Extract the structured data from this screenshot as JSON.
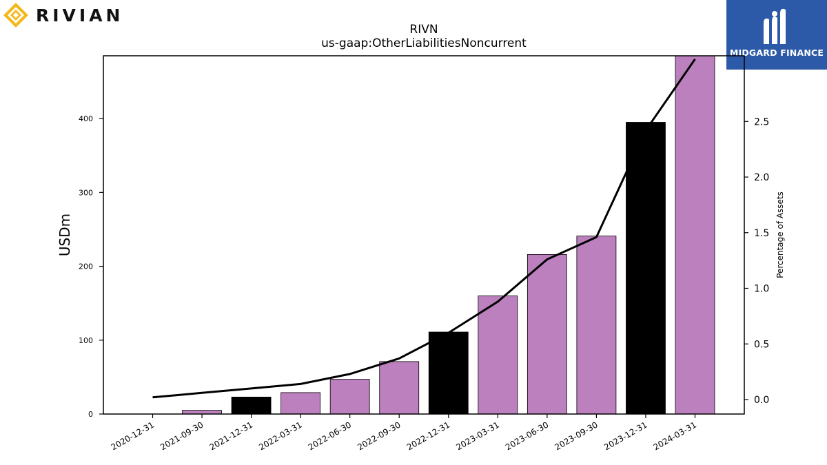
{
  "logos": {
    "left": {
      "text": "RIVIAN",
      "color": "#f3b81b"
    },
    "right": {
      "text": "MIDGARD FINANCE",
      "background": "#2d5aa8"
    }
  },
  "chart_data": {
    "type": "bar",
    "title": "RIVN",
    "subtitle": "us-gaap:OtherLiabilitiesNoncurrent",
    "ylabel": "USDm",
    "y2label": "Percentage of Assets",
    "categories": [
      "2020-12-31",
      "2021-09-30",
      "2021-12-31",
      "2022-03-31",
      "2022-06-30",
      "2022-09-30",
      "2022-12-31",
      "2023-03-31",
      "2023-06-30",
      "2023-09-30",
      "2023-12-31",
      "2024-03-31"
    ],
    "series": [
      {
        "values": [
          0,
          5,
          23,
          29,
          47,
          71,
          111,
          160,
          216,
          241,
          395,
          486
        ]
      },
      {
        "axis": "right",
        "type": "line",
        "values": [
          0.02,
          0.06,
          0.1,
          0.14,
          0.23,
          0.37,
          0.6,
          0.88,
          1.26,
          1.46,
          2.42,
          3.06
        ]
      }
    ],
    "bar_colors": [
      "#bb80bd",
      "#bb80bd",
      "#000000",
      "#bb80bd",
      "#bb80bd",
      "#bb80bd",
      "#000000",
      "#bb80bd",
      "#bb80bd",
      "#bb80bd",
      "#000000",
      "#bb80bd"
    ],
    "line_color": "#000000",
    "ylim": [
      0,
      485
    ],
    "yticks": [
      0,
      100,
      200,
      300,
      400
    ],
    "y2lim": [
      -0.13,
      3.09
    ],
    "y2ticks": [
      0.0,
      0.5,
      1.0,
      1.5,
      2.0,
      2.5
    ],
    "y2tick_labels": [
      "0.0",
      "0.5",
      "1.0",
      "1.5",
      "2.0",
      "2.5"
    ],
    "grid": false
  }
}
